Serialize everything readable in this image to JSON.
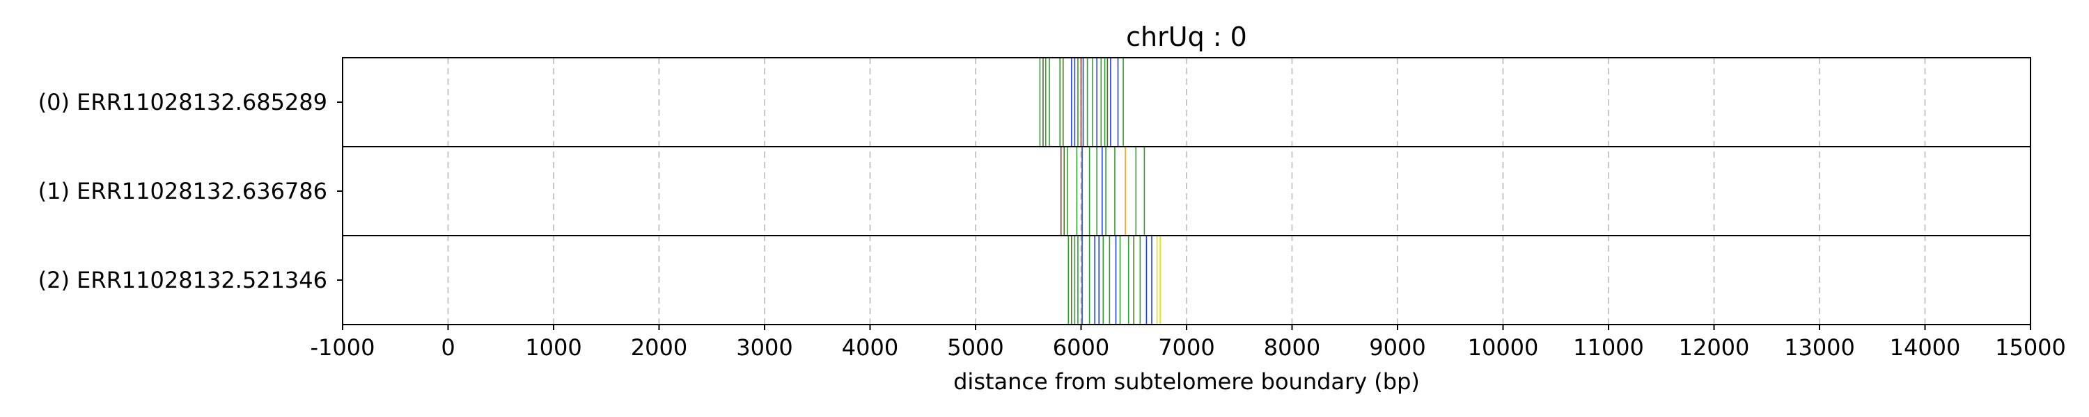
{
  "chart_data": {
    "type": "strip",
    "title": "chrUq : 0",
    "xlabel": "distance from subtelomere boundary (bp)",
    "ylabel": "",
    "xlim": [
      -1000,
      15000
    ],
    "xticks": [
      -1000,
      0,
      1000,
      2000,
      3000,
      4000,
      5000,
      6000,
      7000,
      8000,
      9000,
      10000,
      11000,
      12000,
      13000,
      14000,
      15000
    ],
    "grid": "x-dashed",
    "colors": {
      "green": "#2ca02c",
      "blue": "#1f3ff0",
      "brown": "#8c3a1a",
      "orange": "#ff9f1c",
      "yellow": "#e8e000",
      "olive": "#556b2f",
      "grid": "#c8c8c8"
    },
    "reads": [
      {
        "label": "(0) ERR11028132.685289",
        "marks": [
          {
            "x": 5610,
            "color": "green"
          },
          {
            "x": 5640,
            "color": "olive"
          },
          {
            "x": 5665,
            "color": "green"
          },
          {
            "x": 5700,
            "color": "green"
          },
          {
            "x": 5800,
            "color": "green"
          },
          {
            "x": 5830,
            "color": "olive"
          },
          {
            "x": 5910,
            "color": "blue"
          },
          {
            "x": 5940,
            "color": "blue"
          },
          {
            "x": 5970,
            "color": "green"
          },
          {
            "x": 6000,
            "color": "brown"
          },
          {
            "x": 6020,
            "color": "blue"
          },
          {
            "x": 6060,
            "color": "green"
          },
          {
            "x": 6110,
            "color": "green"
          },
          {
            "x": 6150,
            "color": "blue"
          },
          {
            "x": 6190,
            "color": "green"
          },
          {
            "x": 6225,
            "color": "green"
          },
          {
            "x": 6250,
            "color": "olive"
          },
          {
            "x": 6280,
            "color": "blue"
          },
          {
            "x": 6350,
            "color": "blue"
          },
          {
            "x": 6400,
            "color": "green"
          }
        ]
      },
      {
        "label": "(1) ERR11028132.636786",
        "marks": [
          {
            "x": 5810,
            "color": "brown"
          },
          {
            "x": 5840,
            "color": "olive"
          },
          {
            "x": 5870,
            "color": "green"
          },
          {
            "x": 5960,
            "color": "green"
          },
          {
            "x": 6010,
            "color": "blue"
          },
          {
            "x": 6080,
            "color": "green"
          },
          {
            "x": 6150,
            "color": "green"
          },
          {
            "x": 6200,
            "color": "blue"
          },
          {
            "x": 6235,
            "color": "green"
          },
          {
            "x": 6320,
            "color": "green"
          },
          {
            "x": 6420,
            "color": "orange"
          },
          {
            "x": 6520,
            "color": "green"
          },
          {
            "x": 6600,
            "color": "green"
          }
        ]
      },
      {
        "label": "(2) ERR11028132.521346",
        "marks": [
          {
            "x": 5880,
            "color": "green"
          },
          {
            "x": 5910,
            "color": "olive"
          },
          {
            "x": 5940,
            "color": "green"
          },
          {
            "x": 5970,
            "color": "green"
          },
          {
            "x": 6010,
            "color": "blue"
          },
          {
            "x": 6080,
            "color": "green"
          },
          {
            "x": 6130,
            "color": "blue"
          },
          {
            "x": 6170,
            "color": "blue"
          },
          {
            "x": 6210,
            "color": "green"
          },
          {
            "x": 6270,
            "color": "green"
          },
          {
            "x": 6330,
            "color": "blue"
          },
          {
            "x": 6370,
            "color": "green"
          },
          {
            "x": 6450,
            "color": "green"
          },
          {
            "x": 6500,
            "color": "olive"
          },
          {
            "x": 6560,
            "color": "green"
          },
          {
            "x": 6620,
            "color": "blue"
          },
          {
            "x": 6670,
            "color": "blue"
          },
          {
            "x": 6720,
            "color": "yellow"
          },
          {
            "x": 6750,
            "color": "yellow"
          }
        ]
      }
    ]
  }
}
